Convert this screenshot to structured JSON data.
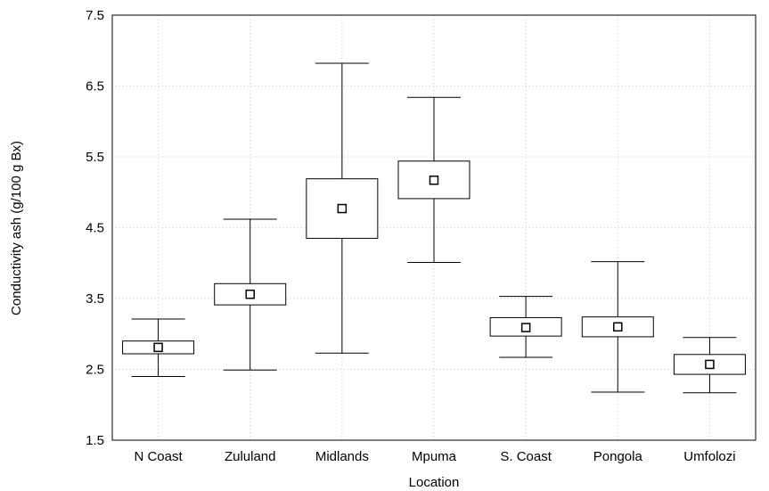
{
  "chart_data": {
    "type": "box",
    "title": "",
    "xlabel": "Location",
    "ylabel": "Conductivity ash (g/100 g Bx)",
    "ylim": [
      1.5,
      7.5
    ],
    "yticks": [
      "1.5",
      "2.5",
      "3.5",
      "4.5",
      "5.5",
      "6.5",
      "7.5"
    ],
    "grid": true,
    "categories": [
      "N Coast",
      "Zululand",
      "Midlands",
      "Mpuma",
      "S. Coast",
      "Pongola",
      "Umfolozi"
    ],
    "series": [
      {
        "center": 2.81,
        "box_low": 2.72,
        "box_high": 2.9,
        "whisker_low": 2.4,
        "whisker_high": 3.21
      },
      {
        "center": 3.56,
        "box_low": 3.41,
        "box_high": 3.71,
        "whisker_low": 2.49,
        "whisker_high": 4.62
      },
      {
        "center": 4.77,
        "box_low": 4.35,
        "box_high": 5.19,
        "whisker_low": 2.73,
        "whisker_high": 6.82
      },
      {
        "center": 5.17,
        "box_low": 4.91,
        "box_high": 5.44,
        "whisker_low": 4.01,
        "whisker_high": 6.34
      },
      {
        "center": 3.09,
        "box_low": 2.97,
        "box_high": 3.23,
        "whisker_low": 2.67,
        "whisker_high": 3.53
      },
      {
        "center": 3.1,
        "box_low": 2.96,
        "box_high": 3.24,
        "whisker_low": 2.18,
        "whisker_high": 4.02
      },
      {
        "center": 2.57,
        "box_low": 2.43,
        "box_high": 2.71,
        "whisker_low": 2.17,
        "whisker_high": 2.95
      }
    ]
  }
}
